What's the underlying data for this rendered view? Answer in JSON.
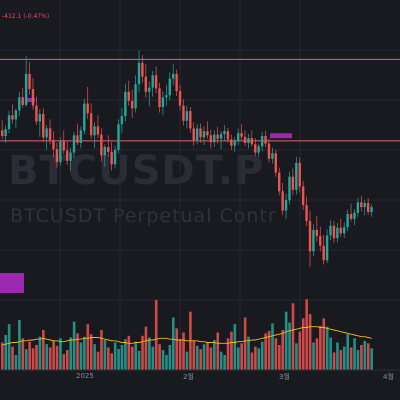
{
  "header": {
    "change": "-412.1 (-0.47%)"
  },
  "watermark": {
    "symbol": "BTCUSDT.P",
    "subtitle": "BTCUSDT Perpetual Contr"
  },
  "colors": {
    "up": "#26a69a",
    "down": "#ef5350",
    "bg": "#181a20",
    "line": "#e0636a",
    "purple": "#9c27b0",
    "grid": "#242833",
    "ma": "#f0b90b"
  },
  "chart_data": {
    "type": "candlestick",
    "x_ticks": [
      "2025",
      "2월",
      "3월",
      "4월"
    ],
    "ylim": [
      72000,
      114000
    ],
    "hlines": [
      108300,
      96500
    ],
    "candles": [
      [
        98000,
        99500,
        96800,
        97200
      ],
      [
        97200,
        98700,
        96200,
        98200
      ],
      [
        98200,
        100800,
        97600,
        100200
      ],
      [
        100200,
        101800,
        99000,
        99600
      ],
      [
        99600,
        101200,
        98400,
        100900
      ],
      [
        100900,
        103600,
        100100,
        102800
      ],
      [
        102800,
        104200,
        101300,
        101700
      ],
      [
        101700,
        108800,
        101400,
        106200
      ],
      [
        106200,
        107900,
        103200,
        104000
      ],
      [
        104000,
        105600,
        101000,
        101600
      ],
      [
        101600,
        102900,
        98800,
        99300
      ],
      [
        99300,
        101100,
        97100,
        100400
      ],
      [
        100400,
        101200,
        96300,
        97000
      ],
      [
        97000,
        98800,
        95200,
        98300
      ],
      [
        98300,
        99600,
        96000,
        96600
      ],
      [
        96600,
        97900,
        94100,
        95300
      ],
      [
        95300,
        96200,
        92600,
        93400
      ],
      [
        93400,
        97000,
        92900,
        96400
      ],
      [
        96400,
        98000,
        94600,
        95100
      ],
      [
        95100,
        96400,
        93000,
        93600
      ],
      [
        93600,
        95500,
        92200,
        94800
      ],
      [
        94800,
        97800,
        94000,
        97300
      ],
      [
        97300,
        99000,
        95900,
        96200
      ],
      [
        96200,
        98600,
        95400,
        98000
      ],
      [
        98000,
        102600,
        97400,
        101900
      ],
      [
        101900,
        104300,
        99700,
        100500
      ],
      [
        100500,
        101900,
        96800,
        97300
      ],
      [
        97300,
        99200,
        95400,
        98600
      ],
      [
        98600,
        100200,
        96900,
        97400
      ],
      [
        97400,
        98300,
        93500,
        94400
      ],
      [
        94400,
        96000,
        92800,
        95600
      ],
      [
        95600,
        97300,
        94200,
        94900
      ],
      [
        94900,
        96300,
        92200,
        93100
      ],
      [
        93100,
        95800,
        92500,
        95200
      ],
      [
        95200,
        99600,
        94700,
        98900
      ],
      [
        98900,
        101300,
        97600,
        100100
      ],
      [
        100100,
        104800,
        99300,
        103600
      ],
      [
        103600,
        105200,
        101600,
        102300
      ],
      [
        102300,
        103900,
        99800,
        101200
      ],
      [
        101200,
        106000,
        100600,
        104700
      ],
      [
        104700,
        109600,
        103500,
        107800
      ],
      [
        107800,
        108900,
        104900,
        105800
      ],
      [
        105800,
        107600,
        102800,
        103600
      ],
      [
        103600,
        105100,
        101500,
        104200
      ],
      [
        104200,
        106600,
        102900,
        106000
      ],
      [
        106000,
        107300,
        103400,
        104100
      ],
      [
        104100,
        104900,
        100600,
        101400
      ],
      [
        101400,
        103700,
        100200,
        102800
      ],
      [
        102800,
        104600,
        101600,
        103100
      ],
      [
        103100,
        106400,
        102400,
        105500
      ],
      [
        105500,
        107700,
        104600,
        106200
      ],
      [
        106200,
        106800,
        103000,
        103700
      ],
      [
        103700,
        104600,
        100900,
        101600
      ],
      [
        101600,
        102500,
        98700,
        99400
      ],
      [
        99400,
        101600,
        98300,
        100800
      ],
      [
        100800,
        101400,
        97700,
        98300
      ],
      [
        98300,
        99200,
        95800,
        96600
      ],
      [
        96600,
        98900,
        96000,
        98300
      ],
      [
        98300,
        99000,
        96200,
        97000
      ],
      [
        97000,
        98600,
        95900,
        97900
      ],
      [
        97900,
        99300,
        96800,
        97300
      ],
      [
        97300,
        98100,
        95400,
        96300
      ],
      [
        96300,
        98000,
        95600,
        97400
      ],
      [
        97400,
        98500,
        96100,
        96800
      ],
      [
        96800,
        97900,
        95300,
        97500
      ],
      [
        97500,
        98800,
        96500,
        97900
      ],
      [
        97900,
        98400,
        96200,
        96700
      ],
      [
        96700,
        97400,
        95200,
        95800
      ],
      [
        95800,
        97100,
        94900,
        96500
      ],
      [
        96500,
        98300,
        95900,
        97600
      ],
      [
        97600,
        98900,
        96600,
        97100
      ],
      [
        97100,
        98000,
        95800,
        96200
      ],
      [
        96200,
        97500,
        95400,
        96900
      ],
      [
        96900,
        98000,
        95700,
        96000
      ],
      [
        96000,
        96900,
        94300,
        94800
      ],
      [
        94800,
        96100,
        94200,
        95700
      ],
      [
        95700,
        97800,
        95000,
        97200
      ],
      [
        97200,
        98000,
        95600,
        96100
      ],
      [
        96100,
        96800,
        93400,
        93900
      ],
      [
        93900,
        95500,
        93200,
        94700
      ],
      [
        94700,
        95200,
        91300,
        91900
      ],
      [
        91900,
        92600,
        88600,
        89200
      ],
      [
        89200,
        90400,
        85800,
        86400
      ],
      [
        86400,
        88800,
        85200,
        87900
      ],
      [
        87900,
        92000,
        87300,
        91300
      ],
      [
        91300,
        92500,
        88600,
        89400
      ],
      [
        89400,
        94200,
        88700,
        93300
      ],
      [
        93300,
        94100,
        89000,
        89900
      ],
      [
        89900,
        90700,
        86500,
        87200
      ],
      [
        87200,
        88400,
        84200,
        84900
      ],
      [
        84900,
        86400,
        78300,
        80500
      ],
      [
        80500,
        84400,
        79800,
        83600
      ],
      [
        83600,
        85600,
        81900,
        82700
      ],
      [
        82700,
        84100,
        80500,
        81300
      ],
      [
        81300,
        82900,
        78600,
        79200
      ],
      [
        79200,
        83700,
        78800,
        82800
      ],
      [
        82800,
        85000,
        82100,
        84200
      ],
      [
        84200,
        84900,
        81700,
        82400
      ],
      [
        82400,
        84600,
        81800,
        83900
      ],
      [
        83900,
        85200,
        82600,
        83100
      ],
      [
        83100,
        84700,
        82400,
        84000
      ],
      [
        84000,
        86500,
        83400,
        85900
      ],
      [
        85900,
        87400,
        84800,
        85200
      ],
      [
        85200,
        86600,
        84300,
        86100
      ],
      [
        86100,
        88200,
        85500,
        87600
      ],
      [
        87600,
        88500,
        86300,
        86900
      ],
      [
        86900,
        87900,
        85700,
        87500
      ],
      [
        87500,
        88200,
        85800,
        86200
      ],
      [
        86200,
        87300,
        85500,
        86900
      ]
    ],
    "volume": [
      33,
      42,
      55,
      28,
      18,
      60,
      38,
      25,
      34,
      26,
      30,
      40,
      48,
      31,
      27,
      35,
      29,
      38,
      19,
      24,
      39,
      58,
      44,
      33,
      40,
      55,
      43,
      31,
      22,
      48,
      36,
      27,
      20,
      33,
      25,
      30,
      37,
      41,
      28,
      34,
      23,
      41,
      52,
      39,
      28,
      84,
      31,
      24,
      18,
      30,
      63,
      50,
      37,
      45,
      22,
      70,
      35,
      29,
      25,
      31,
      33,
      27,
      36,
      45,
      22,
      18,
      38,
      46,
      55,
      27,
      32,
      63,
      40,
      21,
      28,
      26,
      34,
      44,
      47,
      56,
      38,
      30,
      48,
      70,
      57,
      80,
      32,
      46,
      62,
      85,
      67,
      33,
      38,
      53,
      62,
      52,
      39,
      21,
      33,
      24,
      28,
      43,
      27,
      38,
      24,
      30,
      35,
      32,
      26
    ],
    "volume_ma": [
      30,
      31,
      32,
      33,
      33,
      34,
      35,
      35,
      36,
      36,
      37,
      37,
      38,
      37,
      36,
      35,
      35,
      34,
      34,
      35,
      36,
      36,
      37,
      37,
      38,
      38,
      39,
      39,
      39,
      38,
      37,
      36,
      35,
      35,
      34,
      33,
      33,
      32,
      32,
      33,
      33,
      34,
      35,
      36,
      36,
      37,
      38,
      38,
      38,
      37,
      37,
      36,
      36,
      36,
      35,
      35,
      35,
      35,
      34,
      34,
      33,
      33,
      33,
      32,
      32,
      32,
      32,
      33,
      33,
      34,
      34,
      35,
      35,
      36,
      36,
      37,
      38,
      39,
      40,
      41,
      42,
      43,
      44,
      46,
      47,
      48,
      49,
      50,
      51,
      51,
      52,
      52,
      52,
      51,
      51,
      50,
      49,
      48,
      47,
      46,
      45,
      44,
      43,
      42,
      41,
      40,
      40,
      39,
      38
    ]
  }
}
